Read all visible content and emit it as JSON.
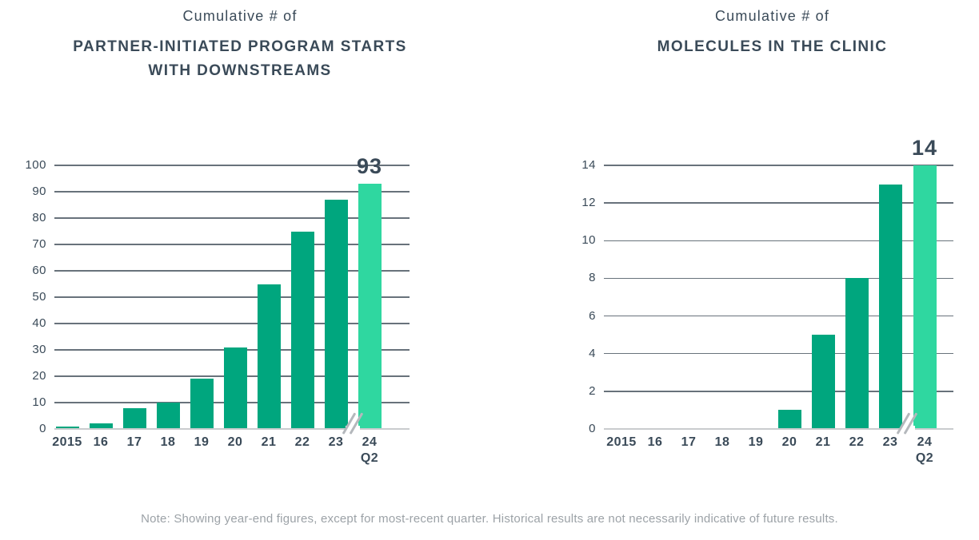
{
  "note": "Note: Showing year-end figures, except for most-recent quarter. Historical results are not necessarily indicative of future results.",
  "colors": {
    "bar": "#00A67E",
    "bar_highlight": "#2FD7A0",
    "text": "#3A4A58",
    "grid": "#68727B",
    "baseline": "#C9CCCE",
    "note": "#9CA2A7",
    "axis_break": "#B4B8BC"
  },
  "chart_data": [
    {
      "type": "bar",
      "supertitle": "Cumulative # of",
      "title_line1": "PARTNER-INITIATED PROGRAM STARTS",
      "title_line2": "WITH DOWNSTREAMS",
      "categories": [
        "2015",
        "16",
        "17",
        "18",
        "19",
        "20",
        "21",
        "22",
        "23",
        "24\nQ2"
      ],
      "values": [
        1,
        2,
        8,
        10,
        19,
        31,
        55,
        75,
        87,
        93
      ],
      "highlight_index": 9,
      "highlight_value_label": "93",
      "ylim": [
        0,
        100
      ],
      "ytick_step": 10,
      "grid": true,
      "legend": false,
      "axis_break_before_last": true
    },
    {
      "type": "bar",
      "supertitle": "Cumulative # of",
      "title_line1": "MOLECULES IN THE CLINIC",
      "title_line2": "",
      "categories": [
        "2015",
        "16",
        "17",
        "18",
        "19",
        "20",
        "21",
        "22",
        "23",
        "24\nQ2"
      ],
      "values": [
        0,
        0,
        0,
        0,
        0,
        1,
        5,
        8,
        13,
        14
      ],
      "highlight_index": 9,
      "highlight_value_label": "14",
      "ylim": [
        0,
        14
      ],
      "ytick_step": 2,
      "grid": true,
      "legend": false,
      "axis_break_before_last": true
    }
  ]
}
